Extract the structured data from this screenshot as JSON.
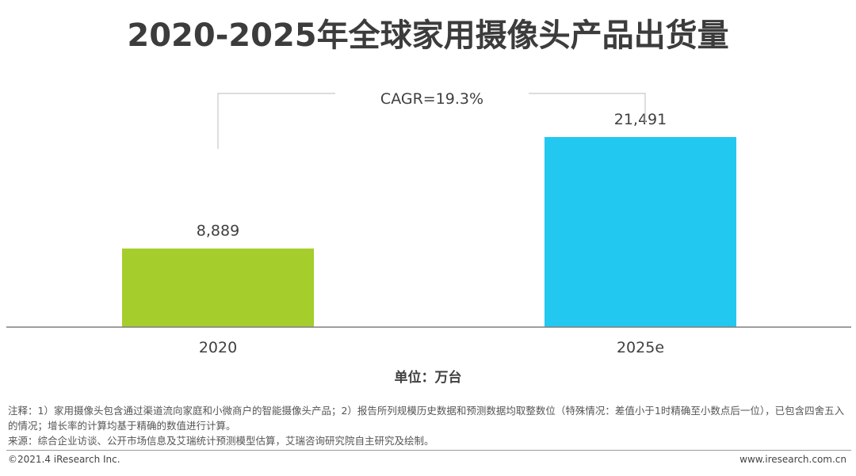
{
  "chart_data": {
    "type": "bar",
    "title": "2020-2025年全球家用摄像头产品出货量",
    "categories": [
      "2020",
      "2025e"
    ],
    "values": [
      8889,
      21491
    ],
    "value_labels": [
      "8,889",
      "21,491"
    ],
    "colors": [
      "#a5cd2c",
      "#22c8f0"
    ],
    "ylim": [
      0,
      30000
    ],
    "annotation": "CAGR=19.3%",
    "unit": "单位：万台",
    "grid": false,
    "legend": "none"
  },
  "notes": {
    "note": "注释：1）家用摄像头包含通过渠道流向家庭和小微商户的智能摄像头产品；2）报告所列规模历史数据和预测数据均取整数位（特殊情况：差值小于1时精确至小数点后一位），已包含四舍五入的情况；增长率的计算均基于精确的数值进行计算。",
    "source": "来源：综合企业访谈、公开市场信息及艾瑞统计预测模型估算，艾瑞咨询研究院自主研究及绘制。"
  },
  "footer": {
    "copyright": "©2021.4 iResearch Inc.",
    "site": "www.iresearch.com.cn"
  }
}
